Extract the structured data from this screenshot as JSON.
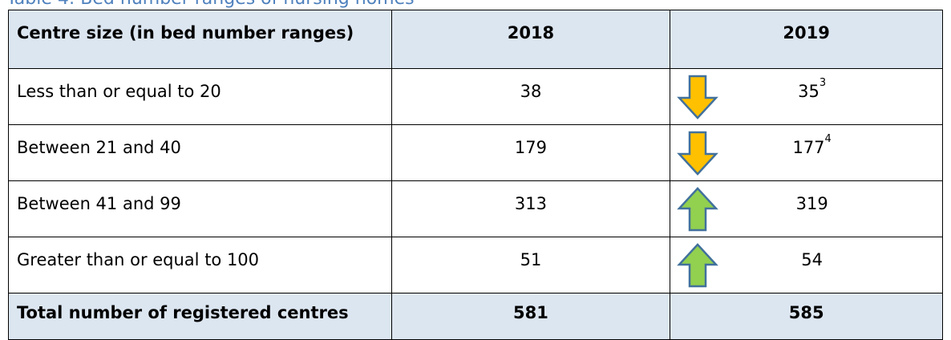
{
  "caption": "Table 4: Bed number ranges of nursing homes",
  "table": {
    "header": [
      "Centre size (in bed number ranges)",
      "2018",
      "2019"
    ],
    "rows": [
      {
        "label": "Less than or equal to 20",
        "y2018": "38",
        "y2019": "35",
        "note": "3"
      },
      {
        "label": "Between 21 and 40",
        "y2018": "179",
        "y2019": "177",
        "note": "4"
      },
      {
        "label": "Between 41 and 99",
        "y2018": "313",
        "y2019": "319"
      },
      {
        "label": "Greater than or equal to 100",
        "y2018": "51",
        "y2019": "54"
      }
    ],
    "total": {
      "label": "Total number of registered centres",
      "y2018": "581",
      "y2019": "585"
    }
  }
}
